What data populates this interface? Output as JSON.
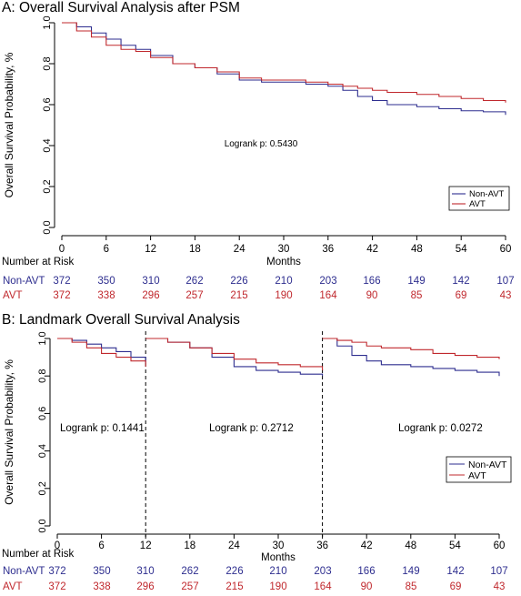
{
  "colors": {
    "non_avt": "#2e2e8f",
    "avt": "#c0282d",
    "axis": "#000000"
  },
  "panel_a": {
    "title": "A: Overall Survival Analysis after PSM",
    "logrank": "Logrank p: 0.5430",
    "risk_header": "Number at Risk",
    "risk_rows": [
      {
        "label": "Non-AVT",
        "color": "#2e2e8f",
        "values": [
          "372",
          "350",
          "310",
          "262",
          "226",
          "210",
          "203",
          "166",
          "149",
          "142",
          "107"
        ]
      },
      {
        "label": "AVT",
        "color": "#c0282d",
        "values": [
          "372",
          "338",
          "296",
          "257",
          "215",
          "190",
          "164",
          "90",
          "85",
          "69",
          "43"
        ]
      }
    ]
  },
  "panel_b": {
    "title": "B: Landmark Overall Survival Analysis",
    "logranks": [
      "Logrank p: 0.1441",
      "Logrank p: 0.2712",
      "Logrank p: 0.0272"
    ],
    "risk_header": "Number at Risk",
    "risk_rows": [
      {
        "label": "Non-AVT",
        "color": "#2e2e8f",
        "values": [
          "372",
          "350",
          "310",
          "262",
          "226",
          "210",
          "203",
          "166",
          "149",
          "142",
          "107"
        ]
      },
      {
        "label": "AVT",
        "color": "#c0282d",
        "values": [
          "372",
          "338",
          "296",
          "257",
          "215",
          "190",
          "164",
          "90",
          "85",
          "69",
          "43"
        ]
      }
    ]
  },
  "chart_data": [
    {
      "type": "line",
      "title": "A: Overall Survival Analysis after PSM",
      "xlabel": "Months",
      "ylabel": "Overall Survival Probability, %",
      "xlim": [
        0,
        60
      ],
      "ylim": [
        0,
        1
      ],
      "xticks": [
        "0",
        "6",
        "12",
        "18",
        "24",
        "30",
        "36",
        "42",
        "48",
        "54",
        "60"
      ],
      "yticks": [
        "0.0",
        "0.2",
        "0.4",
        "0.6",
        "0.8",
        "1.0"
      ],
      "legend": "bottom-right",
      "annotation": "Logrank p: 0.5430",
      "series": [
        {
          "name": "Non-AVT",
          "color": "#2e2e8f",
          "x": [
            0,
            2,
            4,
            6,
            8,
            10,
            12,
            15,
            18,
            21,
            24,
            27,
            30,
            33,
            36,
            38,
            40,
            42,
            44,
            48,
            51,
            54,
            57,
            60
          ],
          "y": [
            1.0,
            0.98,
            0.95,
            0.92,
            0.89,
            0.87,
            0.84,
            0.8,
            0.78,
            0.75,
            0.72,
            0.71,
            0.71,
            0.7,
            0.69,
            0.67,
            0.64,
            0.62,
            0.6,
            0.59,
            0.58,
            0.57,
            0.565,
            0.55
          ]
        },
        {
          "name": "AVT",
          "color": "#c0282d",
          "x": [
            0,
            2,
            4,
            6,
            8,
            10,
            12,
            15,
            18,
            21,
            24,
            27,
            30,
            33,
            36,
            38,
            40,
            42,
            44,
            48,
            51,
            54,
            57,
            60
          ],
          "y": [
            1.0,
            0.96,
            0.93,
            0.89,
            0.87,
            0.86,
            0.83,
            0.8,
            0.78,
            0.76,
            0.73,
            0.72,
            0.72,
            0.71,
            0.7,
            0.69,
            0.68,
            0.67,
            0.66,
            0.65,
            0.64,
            0.63,
            0.62,
            0.61
          ]
        }
      ]
    },
    {
      "type": "line",
      "title": "B: Landmark Overall Survival Analysis",
      "xlabel": "Months",
      "ylabel": "Overall Survival Probability, %",
      "xlim": [
        0,
        60
      ],
      "ylim": [
        0,
        1
      ],
      "xticks": [
        "0",
        "6",
        "12",
        "18",
        "24",
        "30",
        "36",
        "42",
        "48",
        "54",
        "60"
      ],
      "yticks": [
        "0.0",
        "0.2",
        "0.4",
        "0.6",
        "0.8",
        "1.0"
      ],
      "landmarks": [
        12,
        36
      ],
      "legend": "bottom-right",
      "annotations": [
        "Logrank p: 0.1441",
        "Logrank p: 0.2712",
        "Logrank p: 0.0272"
      ],
      "segments": [
        {
          "range": [
            0,
            12
          ],
          "series": [
            {
              "name": "Non-AVT",
              "color": "#2e2e8f",
              "x": [
                0,
                2,
                4,
                6,
                8,
                10,
                12
              ],
              "y": [
                1.0,
                0.99,
                0.97,
                0.95,
                0.93,
                0.9,
                0.87
              ]
            },
            {
              "name": "AVT",
              "color": "#c0282d",
              "x": [
                0,
                2,
                4,
                6,
                8,
                10,
                12
              ],
              "y": [
                1.0,
                0.98,
                0.95,
                0.92,
                0.9,
                0.88,
                0.85
              ]
            }
          ]
        },
        {
          "range": [
            12,
            36
          ],
          "series": [
            {
              "name": "Non-AVT",
              "color": "#2e2e8f",
              "x": [
                12,
                15,
                18,
                21,
                24,
                27,
                30,
                33,
                36
              ],
              "y": [
                1.0,
                0.98,
                0.95,
                0.9,
                0.85,
                0.83,
                0.82,
                0.81,
                0.8
              ]
            },
            {
              "name": "AVT",
              "color": "#c0282d",
              "x": [
                12,
                15,
                18,
                21,
                24,
                27,
                30,
                33,
                36
              ],
              "y": [
                1.0,
                0.98,
                0.95,
                0.92,
                0.89,
                0.87,
                0.86,
                0.85,
                0.83
              ]
            }
          ]
        },
        {
          "range": [
            36,
            60
          ],
          "series": [
            {
              "name": "Non-AVT",
              "color": "#2e2e8f",
              "x": [
                36,
                38,
                40,
                42,
                44,
                48,
                51,
                54,
                57,
                60
              ],
              "y": [
                1.0,
                0.96,
                0.91,
                0.88,
                0.86,
                0.85,
                0.84,
                0.83,
                0.82,
                0.8
              ]
            },
            {
              "name": "AVT",
              "color": "#c0282d",
              "x": [
                36,
                38,
                40,
                42,
                44,
                48,
                51,
                54,
                57,
                60
              ],
              "y": [
                1.0,
                0.99,
                0.98,
                0.96,
                0.95,
                0.94,
                0.92,
                0.91,
                0.9,
                0.89
              ]
            }
          ]
        }
      ]
    }
  ]
}
